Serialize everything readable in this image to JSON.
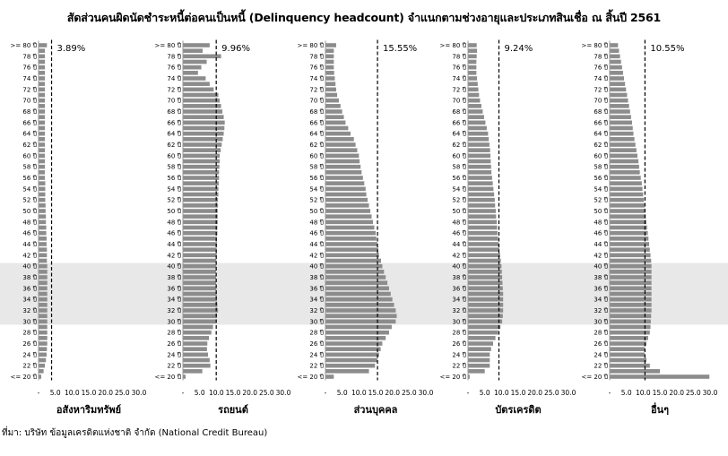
{
  "title": "สัดส่วนคนผิดนัดชำระหนี้ต่อคนเป็นหนี้ (Delinquency headcount) จำแนกตามช่วงอายุและประเภทสินเชื่อ ณ สิ้นปี 2561",
  "source": "ที่มา: บริษัท ข้อมูลเครดิตแห่งชาติ จำกัด (National Credit Bureau)",
  "highlight_band_ages": [
    30,
    40
  ],
  "chart_data": {
    "type": "bar",
    "orientation": "horizontal",
    "categories": [
      "<= 20 ปี",
      "21 ปี",
      "22 ปี",
      "23 ปี",
      "24 ปี",
      "25 ปี",
      "26 ปี",
      "27 ปี",
      "28 ปี",
      "29 ปี",
      "30 ปี",
      "31 ปี",
      "32 ปี",
      "33 ปี",
      "34 ปี",
      "35 ปี",
      "36 ปี",
      "37 ปี",
      "38 ปี",
      "39 ปี",
      "40 ปี",
      "41 ปี",
      "42 ปี",
      "43 ปี",
      "44 ปี",
      "45 ปี",
      "46 ปี",
      "47 ปี",
      "48 ปี",
      "49 ปี",
      "50 ปี",
      "51 ปี",
      "52 ปี",
      "53 ปี",
      "54 ปี",
      "55 ปี",
      "56 ปี",
      "57 ปี",
      "58 ปี",
      "59 ปี",
      "60 ปี",
      "61 ปี",
      "62 ปี",
      "63 ปี",
      "64 ปี",
      "65 ปี",
      "66 ปี",
      "67 ปี",
      "68 ปี",
      "69 ปี",
      "70 ปี",
      "71 ปี",
      "72 ปี",
      "73 ปี",
      "74 ปี",
      "75 ปี",
      "76 ปี",
      "77 ปี",
      "78 ปี",
      "79 ปี",
      ">= 80 ปี"
    ],
    "y_tick_labels": [
      "<= 20 ปี",
      "22 ปี",
      "24 ปี",
      "26 ปี",
      "28 ปี",
      "30 ปี",
      "32 ปี",
      "34 ปี",
      "36 ปี",
      "38 ปี",
      "40 ปี",
      "42 ปี",
      "44 ปี",
      "46 ปี",
      "48 ปี",
      "50 ปี",
      "52 ปี",
      "54 ปี",
      "56 ปี",
      "58 ปี",
      "60 ปี",
      "62 ปี",
      "64 ปี",
      "66 ปี",
      "68 ปี",
      "70 ปี",
      "72 ปี",
      "74 ปี",
      "76 ปี",
      "78 ปี",
      ">= 80 ปี"
    ],
    "x_ticks": [
      "-",
      "5.0",
      "10.0",
      "15.0",
      "20.0",
      "25.0",
      "30.0"
    ],
    "xlim": [
      0,
      30
    ],
    "panels": [
      {
        "name": "อสังหาริมทรัพย์",
        "average": 3.89,
        "average_label": "3.89%",
        "values": [
          0.8,
          1.5,
          1.9,
          2.2,
          2.4,
          2.5,
          2.6,
          2.6,
          2.6,
          2.6,
          2.6,
          2.6,
          2.6,
          2.6,
          2.6,
          2.6,
          2.6,
          2.6,
          2.6,
          2.6,
          2.6,
          2.5,
          2.5,
          2.5,
          2.4,
          2.4,
          2.3,
          2.3,
          2.2,
          2.2,
          2.1,
          2.1,
          2.0,
          2.0,
          2.0,
          2.0,
          1.9,
          1.9,
          1.9,
          1.9,
          1.9,
          1.9,
          1.9,
          1.9,
          1.9,
          1.9,
          1.9,
          1.9,
          1.9,
          1.9,
          1.9,
          1.9,
          1.9,
          1.9,
          1.9,
          1.9,
          1.9,
          1.9,
          1.9,
          1.9,
          2.5
        ]
      },
      {
        "name": "รถยนต์",
        "average": 9.96,
        "average_label": "9.96%",
        "values": [
          0.8,
          5.8,
          8.2,
          8.0,
          7.5,
          7.2,
          7.3,
          7.8,
          8.5,
          9.0,
          9.8,
          10.2,
          10.5,
          10.3,
          10.2,
          10.1,
          10.0,
          9.9,
          9.9,
          9.9,
          10.0,
          10.0,
          10.1,
          10.1,
          10.2,
          10.2,
          10.3,
          10.3,
          10.4,
          10.4,
          10.4,
          10.5,
          10.5,
          10.6,
          10.6,
          10.7,
          10.8,
          10.8,
          10.9,
          11.0,
          11.0,
          11.3,
          11.6,
          11.9,
          12.2,
          12.4,
          12.5,
          12.2,
          11.8,
          11.4,
          11.0,
          10.6,
          9.2,
          8.0,
          6.8,
          4.5,
          5.5,
          7.1,
          11.4,
          5.9,
          8.0
        ]
      },
      {
        "name": "ส่วนบุคคล",
        "average": 15.55,
        "average_label": "15.55%",
        "values": [
          2.5,
          13.0,
          14.8,
          15.5,
          16.0,
          16.5,
          17.0,
          18.0,
          19.0,
          19.8,
          21.0,
          21.3,
          21.0,
          20.5,
          20.0,
          19.5,
          19.0,
          18.5,
          18.0,
          17.5,
          17.0,
          16.6,
          16.0,
          15.8,
          15.5,
          15.2,
          15.0,
          14.6,
          14.2,
          13.8,
          13.4,
          13.0,
          12.6,
          12.2,
          12.0,
          11.6,
          11.2,
          10.8,
          10.5,
          10.2,
          10.0,
          9.5,
          9.0,
          8.5,
          7.5,
          6.8,
          6.0,
          5.5,
          5.0,
          4.5,
          4.0,
          3.5,
          3.2,
          3.0,
          2.8,
          2.6,
          2.5,
          2.5,
          2.5,
          2.5,
          3.2
        ]
      },
      {
        "name": "บัตรเครดิต",
        "average": 9.24,
        "average_label": "9.24%",
        "values": [
          0.5,
          5.0,
          6.5,
          6.5,
          6.5,
          6.9,
          7.5,
          8.2,
          9.0,
          9.7,
          10.2,
          10.4,
          10.5,
          10.5,
          10.5,
          10.5,
          10.4,
          10.3,
          10.2,
          10.1,
          10.0,
          9.8,
          9.6,
          9.4,
          9.2,
          9.0,
          8.8,
          8.7,
          8.6,
          8.4,
          8.3,
          8.1,
          8.0,
          7.8,
          7.6,
          7.4,
          7.2,
          7.0,
          6.9,
          6.8,
          6.7,
          6.6,
          6.4,
          6.2,
          6.0,
          5.6,
          5.2,
          4.8,
          4.4,
          4.0,
          3.6,
          3.3,
          3.1,
          2.9,
          2.7,
          2.5,
          2.5,
          2.5,
          2.6,
          2.7,
          2.6
        ]
      },
      {
        "name": "อื่นๆ",
        "average": 10.55,
        "average_label": "10.55%",
        "values": [
          29.8,
          15.0,
          12.0,
          11.0,
          10.5,
          10.5,
          11.0,
          11.5,
          12.0,
          12.2,
          12.3,
          12.4,
          12.5,
          12.5,
          12.5,
          12.5,
          12.5,
          12.5,
          12.5,
          12.5,
          12.5,
          12.4,
          12.2,
          12.0,
          11.8,
          11.6,
          11.4,
          11.2,
          11.0,
          10.8,
          10.6,
          10.4,
          10.2,
          10.0,
          9.8,
          9.6,
          9.3,
          9.0,
          8.8,
          8.6,
          8.3,
          8.0,
          7.7,
          7.4,
          7.1,
          6.9,
          6.7,
          6.4,
          6.1,
          5.8,
          5.5,
          5.2,
          4.9,
          4.6,
          4.3,
          4.0,
          3.7,
          3.4,
          3.1,
          2.8,
          2.5
        ]
      }
    ]
  }
}
